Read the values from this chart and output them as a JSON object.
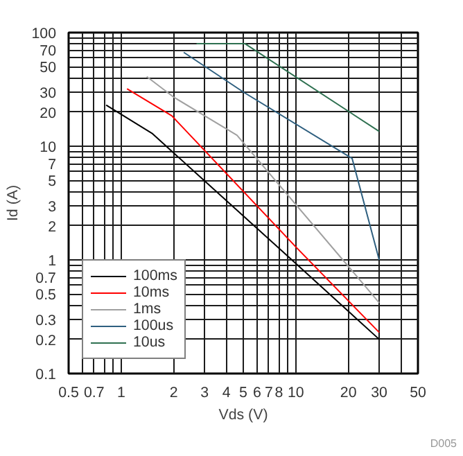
{
  "chart_data": {
    "type": "line",
    "xlabel": "Vds (V)",
    "ylabel": "Id (A)",
    "log": "xy",
    "grid": true,
    "legend": "bottom left",
    "xlim": [
      0.5,
      50
    ],
    "ylim": [
      0.1,
      100
    ],
    "xticks": [
      0.5,
      {
        "value": 0.6,
        "label": null
      },
      0.7,
      {
        "value": 0.8,
        "label": null
      },
      {
        "value": 0.9,
        "label": null
      },
      1,
      2,
      3,
      4,
      5,
      6,
      7,
      8,
      {
        "value": 9,
        "label": null
      },
      10,
      20,
      30,
      {
        "value": 40,
        "label": null
      },
      50
    ],
    "yticks": [
      0.1,
      0.2,
      0.3,
      {
        "value": 0.4,
        "label": null
      },
      0.5,
      {
        "value": 0.6,
        "label": null
      },
      0.7,
      {
        "value": 0.8,
        "label": null
      },
      {
        "value": 0.9,
        "label": null
      },
      1,
      2,
      3,
      {
        "value": 4,
        "label": null
      },
      5,
      {
        "value": 6,
        "label": null
      },
      7,
      {
        "value": 8,
        "label": null
      },
      {
        "value": 9,
        "label": null
      },
      10,
      20,
      30,
      {
        "value": 40,
        "label": null
      },
      50,
      {
        "value": 60,
        "label": null
      },
      70,
      {
        "value": 80,
        "label": null
      },
      {
        "value": 90,
        "label": null
      },
      100
    ],
    "annotations": [
      "D005"
    ],
    "series": [
      {
        "name": "100ms",
        "color": "#000000",
        "x": [
          0.82,
          1.5,
          10,
          30
        ],
        "values": [
          23,
          13,
          0.93,
          0.2
        ]
      },
      {
        "name": "10ms",
        "color": "#ff0000",
        "x": [
          1.08,
          1.95,
          10,
          30
        ],
        "values": [
          32,
          18.5,
          1.3,
          0.23
        ]
      },
      {
        "name": "1ms",
        "color": "#a0a0a0",
        "x": [
          1.4,
          2,
          4.6,
          30
        ],
        "values": [
          41,
          27,
          12.5,
          0.42
        ]
      },
      {
        "name": "100us",
        "color": "#2e5f7f",
        "x": [
          2.28,
          5,
          21,
          30
        ],
        "values": [
          67,
          30,
          7.8,
          1
        ]
      },
      {
        "name": "10us",
        "color": "#2e7050",
        "x": [
          2.7,
          5.1,
          30
        ],
        "values": [
          80,
          80,
          13.5
        ]
      }
    ]
  }
}
